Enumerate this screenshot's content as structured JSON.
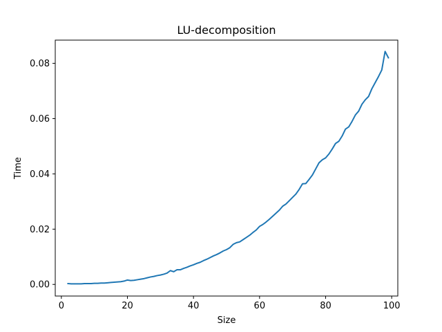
{
  "chart_data": {
    "type": "line",
    "title": "LU-decomposition",
    "xlabel": "Size",
    "ylabel": "Time",
    "xlim": [
      -1.85,
      101.85
    ],
    "ylim": [
      -0.0042,
      0.0884
    ],
    "xticks": [
      0,
      20,
      40,
      60,
      80,
      100
    ],
    "xtick_labels": [
      "0",
      "20",
      "40",
      "60",
      "80",
      "100"
    ],
    "yticks": [
      0.0,
      0.02,
      0.04,
      0.06,
      0.08
    ],
    "ytick_labels": [
      "0.00",
      "0.02",
      "0.04",
      "0.06",
      "0.08"
    ],
    "grid": false,
    "legend": "none",
    "line_color": "#1f77b4",
    "series": [
      {
        "x": [
          2,
          3,
          4,
          5,
          6,
          7,
          8,
          9,
          10,
          11,
          12,
          13,
          14,
          15,
          16,
          17,
          18,
          19,
          20,
          21,
          22,
          23,
          24,
          25,
          26,
          27,
          28,
          29,
          30,
          31,
          32,
          33,
          34,
          35,
          36,
          37,
          38,
          39,
          40,
          41,
          42,
          43,
          44,
          45,
          46,
          47,
          48,
          49,
          50,
          51,
          52,
          53,
          54,
          55,
          56,
          57,
          58,
          59,
          60,
          61,
          62,
          63,
          64,
          65,
          66,
          67,
          68,
          69,
          70,
          71,
          72,
          73,
          74,
          75,
          76,
          77,
          78,
          79,
          80,
          81,
          82,
          83,
          84,
          85,
          86,
          87,
          88,
          89,
          90,
          91,
          92,
          93,
          94,
          95,
          96,
          97,
          98,
          99
        ],
        "values": [
          0.0003,
          0.0002,
          0.0002,
          0.0002,
          0.0002,
          0.0003,
          0.0003,
          0.0003,
          0.0004,
          0.0004,
          0.0005,
          0.0005,
          0.0006,
          0.0007,
          0.0008,
          0.0009,
          0.001,
          0.0012,
          0.0016,
          0.0014,
          0.0015,
          0.0017,
          0.0019,
          0.0021,
          0.0024,
          0.0027,
          0.0029,
          0.0032,
          0.0034,
          0.0037,
          0.0041,
          0.005,
          0.0046,
          0.0053,
          0.0053,
          0.0058,
          0.0062,
          0.0067,
          0.0071,
          0.0076,
          0.008,
          0.0086,
          0.0091,
          0.0097,
          0.0103,
          0.0108,
          0.0114,
          0.0121,
          0.0126,
          0.0133,
          0.0145,
          0.0151,
          0.0154,
          0.0162,
          0.017,
          0.0178,
          0.0188,
          0.0197,
          0.021,
          0.0217,
          0.0226,
          0.0236,
          0.0247,
          0.0258,
          0.0269,
          0.0283,
          0.0291,
          0.0303,
          0.0315,
          0.0327,
          0.0344,
          0.0364,
          0.0365,
          0.038,
          0.0396,
          0.0418,
          0.044,
          0.0451,
          0.0458,
          0.0472,
          0.049,
          0.051,
          0.0518,
          0.0537,
          0.0562,
          0.057,
          0.059,
          0.0613,
          0.0627,
          0.0652,
          0.0668,
          0.068,
          0.0708,
          0.073,
          0.0752,
          0.0776,
          0.0843,
          0.082
        ]
      }
    ]
  }
}
